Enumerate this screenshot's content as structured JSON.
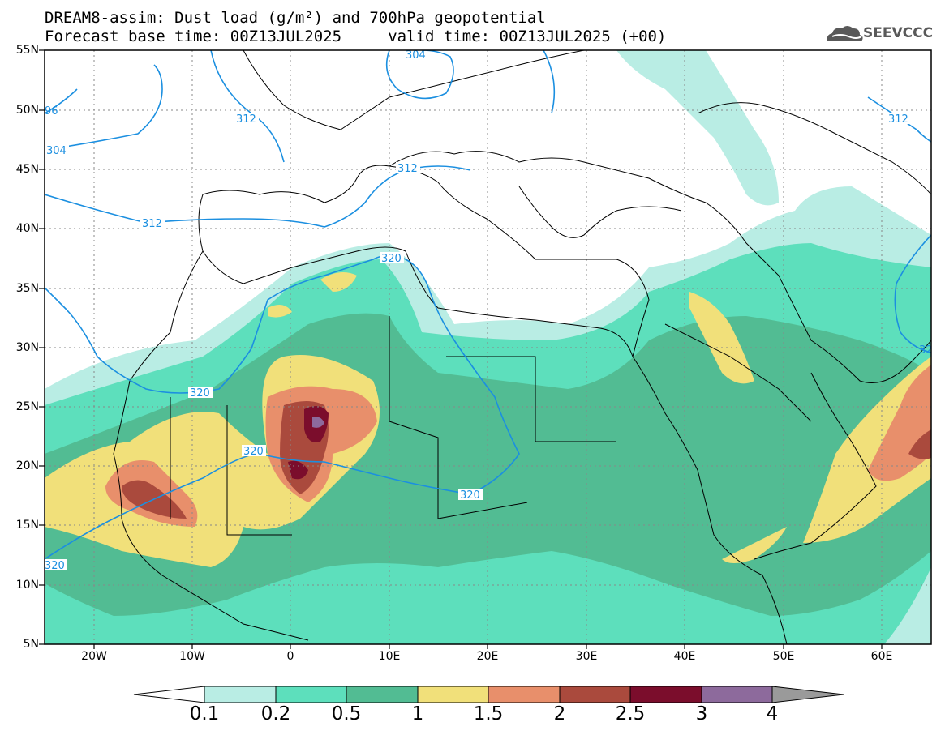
{
  "header": {
    "line1": "DREAM8-assim: Dust load (g/m²) and 700hPa geopotential",
    "line2": "Forecast base time: 00Z13JUL2025     valid time: 00Z13JUL2025 (+00)"
  },
  "logo": {
    "text": "SEEVCCC",
    "icon": "cloud-logo-icon"
  },
  "colors": {
    "bin1": "#b9ede4",
    "bin2": "#5ddfbc",
    "bin3": "#52bc93",
    "bin4": "#f1e07a",
    "bin5": "#e88f6b",
    "bin6": "#aa4a3d",
    "bin7": "#7b0d2c",
    "bin8": "#8d6a9c",
    "bin9": "#9a9a9a",
    "contour": "#1b8fe0"
  },
  "axes": {
    "lat_labels": [
      "55N",
      "50N",
      "45N",
      "40N",
      "35N",
      "30N",
      "25N",
      "20N",
      "15N",
      "10N",
      "5N"
    ],
    "lon_labels": [
      "20W",
      "10W",
      "0",
      "10E",
      "20E",
      "30E",
      "40E",
      "50E",
      "60E"
    ]
  },
  "contours": {
    "labels": [
      "320",
      "320",
      "320",
      "320",
      "320",
      "320",
      "312",
      "312",
      "312",
      "312",
      "304",
      "96",
      "304",
      "32"
    ]
  },
  "colorbar": {
    "labels": [
      "0.1",
      "0.2",
      "0.5",
      "1",
      "1.5",
      "2",
      "2.5",
      "3",
      "4"
    ]
  }
}
